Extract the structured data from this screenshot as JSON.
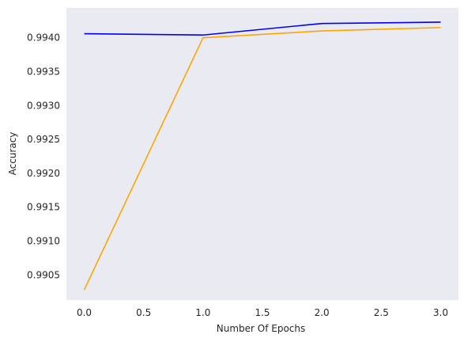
{
  "chart_data": {
    "type": "line",
    "title": "",
    "xlabel": "Number Of Epochs",
    "ylabel": "Accuracy",
    "grid": false,
    "background": "#eaeaf2",
    "xlim": [
      -0.15,
      3.15
    ],
    "ylim": [
      0.99013,
      0.99444
    ],
    "xticks": [
      0.0,
      0.5,
      1.0,
      1.5,
      2.0,
      2.5,
      3.0
    ],
    "xtick_labels": [
      "0.0",
      "0.5",
      "1.0",
      "1.5",
      "2.0",
      "2.5",
      "3.0"
    ],
    "yticks": [
      0.9905,
      0.991,
      0.9915,
      0.992,
      0.9925,
      0.993,
      0.9935,
      0.994
    ],
    "ytick_labels": [
      "0.9905",
      "0.9910",
      "0.9915",
      "0.9920",
      "0.9925",
      "0.9930",
      "0.9935",
      "0.9940"
    ],
    "x": [
      0,
      1,
      2,
      3
    ],
    "series": [
      {
        "color": "#0000ff",
        "values": [
          0.99406,
          0.99404,
          0.99421,
          0.99423
        ]
      },
      {
        "color": "#ffa500",
        "values": [
          0.99028,
          0.994,
          0.9941,
          0.99415
        ]
      }
    ]
  }
}
